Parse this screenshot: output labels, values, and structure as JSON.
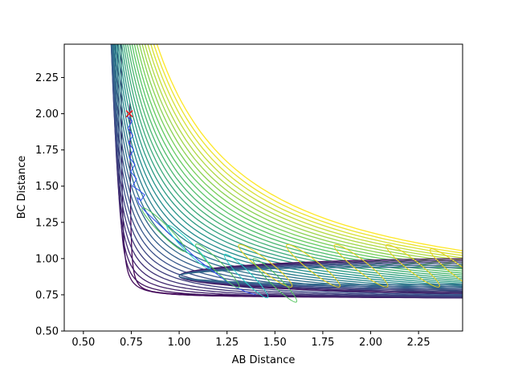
{
  "chart_data": {
    "type": "contour",
    "title": "",
    "xlabel": "AB Distance",
    "ylabel": "BC Distance",
    "xlim": [
      0.4,
      2.48
    ],
    "ylim": [
      0.5,
      2.48
    ],
    "xticks": [
      "0.50",
      "0.75",
      "1.00",
      "1.25",
      "1.50",
      "1.75",
      "2.00",
      "2.25"
    ],
    "yticks": [
      "0.50",
      "0.75",
      "1.00",
      "1.25",
      "1.50",
      "1.75",
      "2.00",
      "2.25"
    ],
    "grid": false,
    "legend": "none",
    "colormap": "viridis",
    "colormap_stops": [
      "#440154",
      "#3b528b",
      "#21918c",
      "#5ec962",
      "#fde725"
    ],
    "start_marker": {
      "symbol": "x",
      "x": 0.74,
      "y": 2.0,
      "color": "#e41a1c"
    },
    "trajectory": {
      "description_color": "#2c4cf0",
      "points": [
        [
          0.742,
          1.98
        ],
        [
          0.742,
          1.95
        ],
        [
          0.745,
          1.9
        ],
        [
          0.746,
          1.85
        ],
        [
          0.748,
          1.8
        ],
        [
          0.75,
          1.75
        ],
        [
          0.752,
          1.7
        ],
        [
          0.756,
          1.65
        ],
        [
          0.76,
          1.6
        ],
        [
          0.765,
          1.55
        ],
        [
          0.77,
          1.5
        ],
        [
          0.78,
          1.47
        ],
        [
          0.8,
          1.46
        ],
        [
          0.82,
          1.44
        ],
        [
          0.8,
          1.4
        ],
        [
          0.78,
          1.42
        ],
        [
          0.79,
          1.38
        ],
        [
          0.82,
          1.33
        ],
        [
          0.86,
          1.28
        ],
        [
          0.9,
          1.23
        ],
        [
          0.95,
          1.17
        ],
        [
          1.0,
          1.11
        ],
        [
          1.05,
          1.05
        ],
        [
          1.1,
          0.99
        ],
        [
          1.15,
          0.94
        ],
        [
          1.2,
          0.89
        ],
        [
          1.25,
          0.84
        ],
        [
          1.3,
          0.8
        ],
        [
          1.35,
          0.77
        ],
        [
          1.4,
          0.75
        ]
      ]
    },
    "vibration_ellipses": [
      {
        "x": 1.45,
        "y": 0.95
      },
      {
        "x": 1.7,
        "y": 0.95
      },
      {
        "x": 1.95,
        "y": 0.95
      },
      {
        "x": 2.22,
        "y": 0.95
      },
      {
        "x": 2.45,
        "y": 0.92
      }
    ]
  }
}
